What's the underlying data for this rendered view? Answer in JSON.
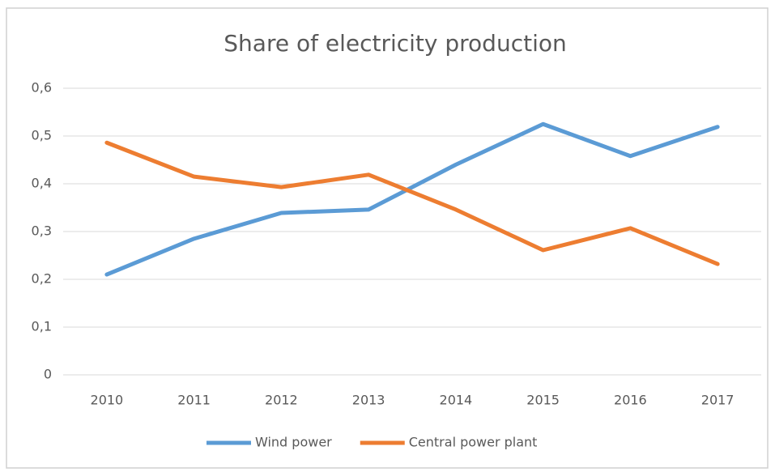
{
  "chart_data": {
    "type": "line",
    "title": "Share of electricity production",
    "categories": [
      "2010",
      "2011",
      "2012",
      "2013",
      "2014",
      "2015",
      "2016",
      "2017"
    ],
    "series": [
      {
        "name": "Wind power",
        "color": "#5b9bd5",
        "values": [
          0.21,
          0.285,
          0.339,
          0.346,
          0.44,
          0.525,
          0.458,
          0.519
        ]
      },
      {
        "name": "Central power plant",
        "color": "#ed7d31",
        "values": [
          0.486,
          0.415,
          0.393,
          0.419,
          0.346,
          0.261,
          0.307,
          0.232
        ]
      }
    ],
    "ylim": [
      0,
      0.6
    ],
    "yticks": [
      0,
      {
        "value": 0.1,
        "label": "0,1"
      },
      {
        "value": 0.2,
        "label": "0,2"
      },
      {
        "value": 0.3,
        "label": "0,3"
      },
      {
        "value": 0.4,
        "label": "0,4"
      },
      {
        "value": 0.5,
        "label": "0,5"
      },
      {
        "value": 0.6,
        "label": "0,6"
      }
    ],
    "grid": true,
    "legend": "bottom"
  }
}
